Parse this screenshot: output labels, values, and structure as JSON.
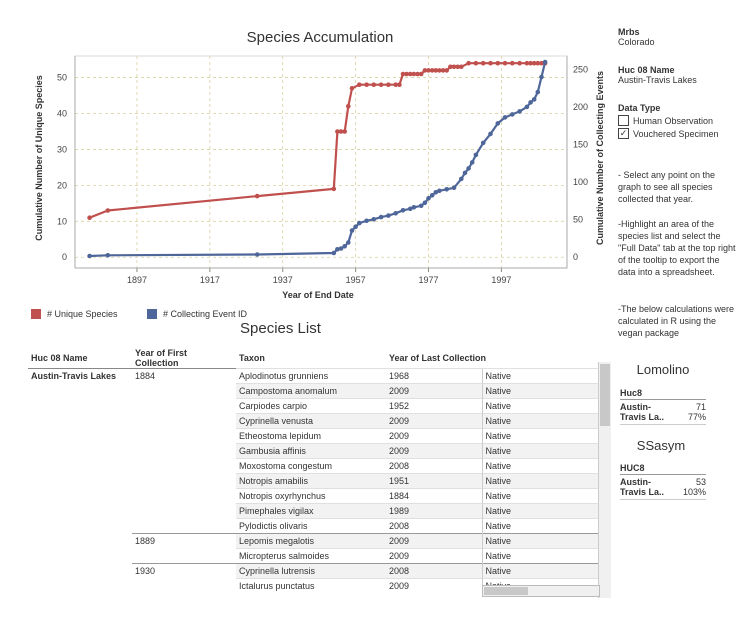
{
  "chart": {
    "title": "Species Accumulation",
    "xlabel": "Year of End Date",
    "ylabel_left": "Cumulative Number of Unique Species",
    "ylabel_right": "Cumulative Number of Collecting Events",
    "x_ticks": [
      "1897",
      "1917",
      "1937",
      "1957",
      "1977",
      "1997"
    ],
    "y_left_ticks": [
      "0",
      "10",
      "20",
      "30",
      "40",
      "50"
    ],
    "y_right_ticks": [
      "0",
      "50",
      "100",
      "150",
      "200",
      "250"
    ],
    "legend": [
      {
        "label": "# Unique Species",
        "color": "#c0504d"
      },
      {
        "label": "# Collecting Event ID",
        "color": "#4e6699"
      }
    ]
  },
  "chart_data": {
    "type": "line",
    "title": "Species Accumulation",
    "xlabel": "Year of End Date",
    "ylabel": "Cumulative Number of Unique Species",
    "y2label": "Cumulative Number of Collecting Events",
    "xlim": [
      1880,
      2015
    ],
    "ylim": [
      -3,
      56
    ],
    "y2lim": [
      -15,
      268
    ],
    "grid": true,
    "legend_position": "bottom-left",
    "series": [
      {
        "name": "# Unique Species",
        "axis": "left",
        "color": "#c0504d",
        "x": [
          1884,
          1889,
          1930,
          1951,
          1952,
          1953,
          1954,
          1955,
          1956,
          1958,
          1960,
          1962,
          1964,
          1966,
          1968,
          1969,
          1970,
          1971,
          1972,
          1973,
          1974,
          1975,
          1976,
          1977,
          1978,
          1979,
          1980,
          1981,
          1982,
          1983,
          1984,
          1985,
          1986,
          1988,
          1990,
          1992,
          1994,
          1996,
          1998,
          2000,
          2002,
          2004,
          2005,
          2006,
          2007,
          2008,
          2009
        ],
        "y": [
          11,
          13,
          17,
          19,
          35,
          35,
          35,
          42,
          47,
          48,
          48,
          48,
          48,
          48,
          48,
          48,
          51,
          51,
          51,
          51,
          51,
          51,
          52,
          52,
          52,
          52,
          52,
          52,
          52,
          53,
          53,
          53,
          53,
          54,
          54,
          54,
          54,
          54,
          54,
          54,
          54,
          54,
          54,
          54,
          54,
          54,
          54
        ]
      },
      {
        "name": "# Collecting Event ID",
        "axis": "right",
        "color": "#4e6699",
        "x": [
          1884,
          1889,
          1930,
          1951,
          1952,
          1953,
          1954,
          1955,
          1956,
          1957,
          1958,
          1960,
          1962,
          1964,
          1966,
          1968,
          1970,
          1972,
          1973,
          1975,
          1976,
          1977,
          1978,
          1979,
          1980,
          1982,
          1984,
          1986,
          1987,
          1988,
          1989,
          1990,
          1992,
          1994,
          1996,
          1998,
          2000,
          2002,
          2004,
          2005,
          2006,
          2007,
          2008,
          2009
        ],
        "y": [
          1,
          2,
          3,
          5,
          10,
          11,
          14,
          19,
          35,
          40,
          45,
          48,
          50,
          53,
          55,
          58,
          62,
          64,
          66,
          68,
          72,
          78,
          82,
          86,
          88,
          90,
          92,
          104,
          112,
          118,
          126,
          136,
          152,
          164,
          178,
          186,
          190,
          194,
          200,
          206,
          210,
          220,
          240,
          260
        ]
      }
    ]
  },
  "sidebar": {
    "mrbs_label": "Mrbs",
    "mrbs_value": "Colorado",
    "huc_label": "Huc 08 Name",
    "huc_value": "Austin-Travis Lakes",
    "data_type_label": "Data Type",
    "options": [
      {
        "label": "Human Observation",
        "checked": false,
        "mark": ""
      },
      {
        "label": "Vouchered Specimen",
        "checked": true,
        "mark": "✓"
      }
    ],
    "instr1": "- Select any point on the graph to see all species collected that year.",
    "instr2": "-Highlight an area of the species list and select the \"Full Data\" tab at the top right of the tooltip to export the data into a spreadsheet.",
    "instr3": "-The below calculations were calculated in R using the vegan package"
  },
  "species_list": {
    "title": "Species List",
    "headers": [
      "Huc 08 Name",
      "Year of First Collection",
      "Taxon",
      "Year of Last Collection"
    ],
    "huc": "Austin-Travis Lakes",
    "rows": [
      {
        "first": "1884",
        "taxon": "Aplodinotus grunniens",
        "last": "1968",
        "status": "Native"
      },
      {
        "first": "",
        "taxon": "Campostoma anomalum",
        "last": "2009",
        "status": "Native"
      },
      {
        "first": "",
        "taxon": "Carpiodes carpio",
        "last": "1952",
        "status": "Native"
      },
      {
        "first": "",
        "taxon": "Cyprinella venusta",
        "last": "2009",
        "status": "Native"
      },
      {
        "first": "",
        "taxon": "Etheostoma lepidum",
        "last": "2009",
        "status": "Native"
      },
      {
        "first": "",
        "taxon": "Gambusia affinis",
        "last": "2009",
        "status": "Native"
      },
      {
        "first": "",
        "taxon": "Moxostoma congestum",
        "last": "2008",
        "status": "Native"
      },
      {
        "first": "",
        "taxon": "Notropis amabilis",
        "last": "1951",
        "status": "Native"
      },
      {
        "first": "",
        "taxon": "Notropis oxyrhynchus",
        "last": "1884",
        "status": "Native"
      },
      {
        "first": "",
        "taxon": "Pimephales vigilax",
        "last": "1989",
        "status": "Native"
      },
      {
        "first": "",
        "taxon": "Pylodictis olivaris",
        "last": "2008",
        "status": "Native"
      },
      {
        "first": "1889",
        "taxon": "Lepomis megalotis",
        "last": "2009",
        "status": "Native"
      },
      {
        "first": "",
        "taxon": "Micropterus salmoides",
        "last": "2009",
        "status": "Native"
      },
      {
        "first": "1930",
        "taxon": "Cyprinella lutrensis",
        "last": "2008",
        "status": "Native"
      },
      {
        "first": "",
        "taxon": "Ictalurus punctatus",
        "last": "2009",
        "status": "Native"
      }
    ]
  },
  "lomolino": {
    "title": "Lomolino",
    "header": "Huc8",
    "name_line1": "Austin-",
    "name_line2": "Travis La..",
    "value": "71",
    "percent": "77%"
  },
  "ssasym": {
    "title": "SSasym",
    "header": "HUC8",
    "name_line1": "Austin-",
    "name_line2": "Travis La..",
    "value": "53",
    "percent": "103%"
  }
}
